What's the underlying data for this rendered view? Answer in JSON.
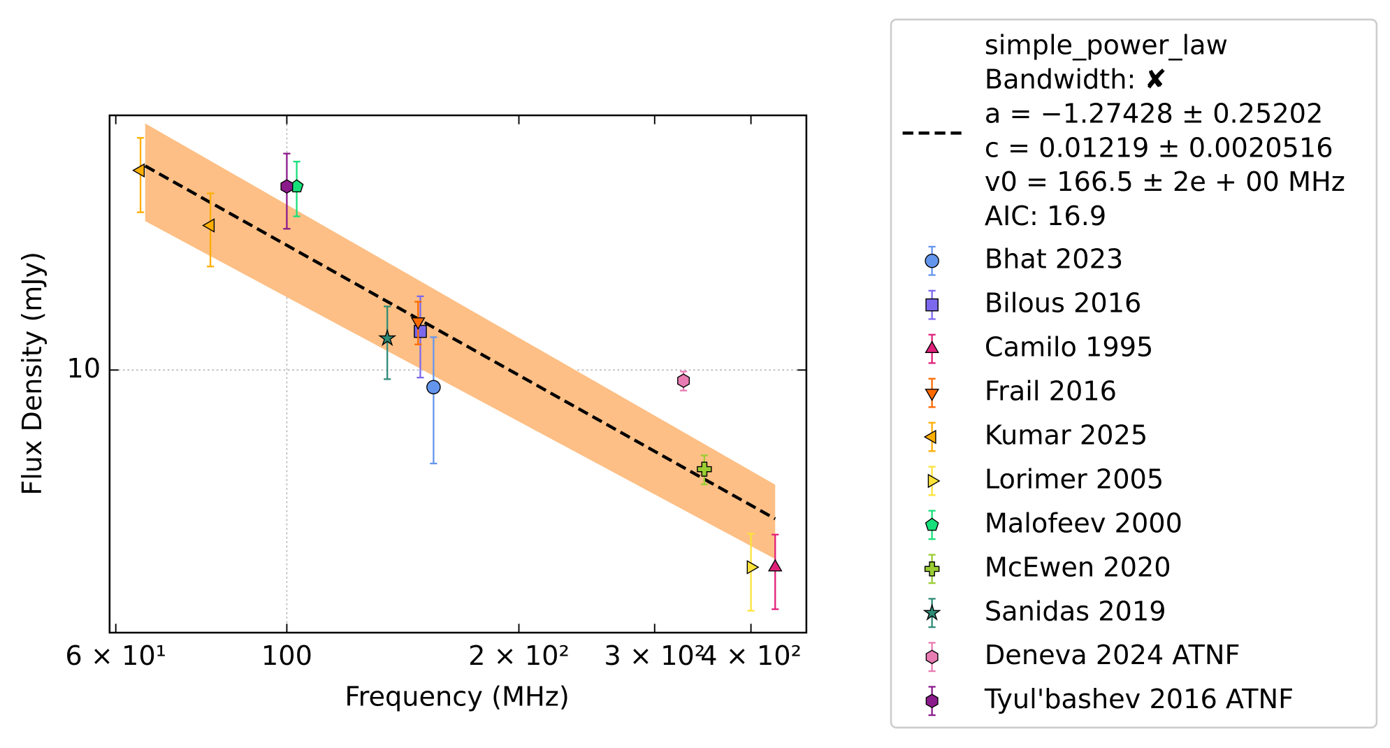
{
  "chart_data": {
    "type": "scatter",
    "x_label": "Frequency (MHz)",
    "y_label": "Flux Density (mJy)",
    "log_x": true,
    "log_y": true,
    "grid": true,
    "xlim": [
      58.9,
      472
    ],
    "ylim": [
      1.68,
      56.4
    ],
    "xticks": [
      {
        "value": 60,
        "label": "6 × 10¹"
      },
      100,
      {
        "value": 200,
        "label": "2 × 10²"
      },
      {
        "value": 300,
        "label": "3 × 10²"
      },
      {
        "value": 400,
        "label": "4 × 10²"
      }
    ],
    "yticks": [
      10
    ],
    "fit": {
      "label": [
        "simple_power_law",
        "Bandwidth: ✘",
        "a = −1.27428 ± 0.25202",
        "c = 0.01219 ± 0.0020516",
        "v0 = 166.5 ± 2e + 00 MHz",
        "AIC: 16.9"
      ],
      "color": "#000000",
      "band_color": "#fdbf85",
      "x": [
        65.5,
        430
      ],
      "y": [
        40.0,
        3.64
      ],
      "band_upper": [
        53.4,
        4.59
      ],
      "band_lower": [
        27.5,
        2.77
      ]
    },
    "series": [
      {
        "name": "Bhat 2023",
        "color": "#6495ed",
        "marker": "circle",
        "x": [
          155
        ],
        "values": [
          8.9
        ],
        "errors": [
          3.6
        ]
      },
      {
        "name": "Bilous 2016",
        "color": "#7b68ee",
        "marker": "square",
        "x": [
          149
        ],
        "values": [
          13.0
        ],
        "errors": [
          3.5
        ]
      },
      {
        "name": "Camilo 1995",
        "color": "#e0217a",
        "marker": "triangle-up",
        "x": [
          430
        ],
        "values": [
          2.62
        ],
        "errors": [
          0.65
        ]
      },
      {
        "name": "Frail 2016",
        "color": "#ff6a00",
        "marker": "triangle-down",
        "x": [
          148
        ],
        "values": [
          13.9
        ],
        "errors": [
          2.0
        ]
      },
      {
        "name": "Kumar 2025",
        "color": "#ffae00",
        "marker": "triangle-left",
        "x": [
          64.6,
          79.6
        ],
        "values": [
          38.8,
          26.7
        ],
        "errors": [
          9.6,
          6.5
        ]
      },
      {
        "name": "Lorimer 2005",
        "color": "#fde33a",
        "marker": "triangle-right",
        "x": [
          400
        ],
        "values": [
          2.62
        ],
        "errors": [
          0.67
        ]
      },
      {
        "name": "Malofeev 2000",
        "color": "#17e07a",
        "marker": "pentagon",
        "x": [
          103
        ],
        "values": [
          34.8
        ],
        "errors": [
          6.4
        ]
      },
      {
        "name": "McEwen 2020",
        "color": "#9acd32",
        "marker": "plus",
        "x": [
          348
        ],
        "values": [
          5.1
        ],
        "errors": [
          0.5
        ]
      },
      {
        "name": "Sanidas 2019",
        "color": "#2e8b77",
        "marker": "star",
        "x": [
          135
        ],
        "values": [
          12.4
        ],
        "errors": [
          3.0
        ]
      },
      {
        "name": "Deneva 2024 ATNF",
        "color": "#e87bb2",
        "marker": "hexagon",
        "x": [
          327
        ],
        "values": [
          9.3
        ],
        "errors": [
          0.6
        ]
      },
      {
        "name": "Tyul'bashev 2016 ATNF",
        "color": "#8b1a8b",
        "marker": "hexagon",
        "x": [
          100
        ],
        "values": [
          34.8
        ],
        "errors": [
          8.7
        ]
      }
    ]
  }
}
